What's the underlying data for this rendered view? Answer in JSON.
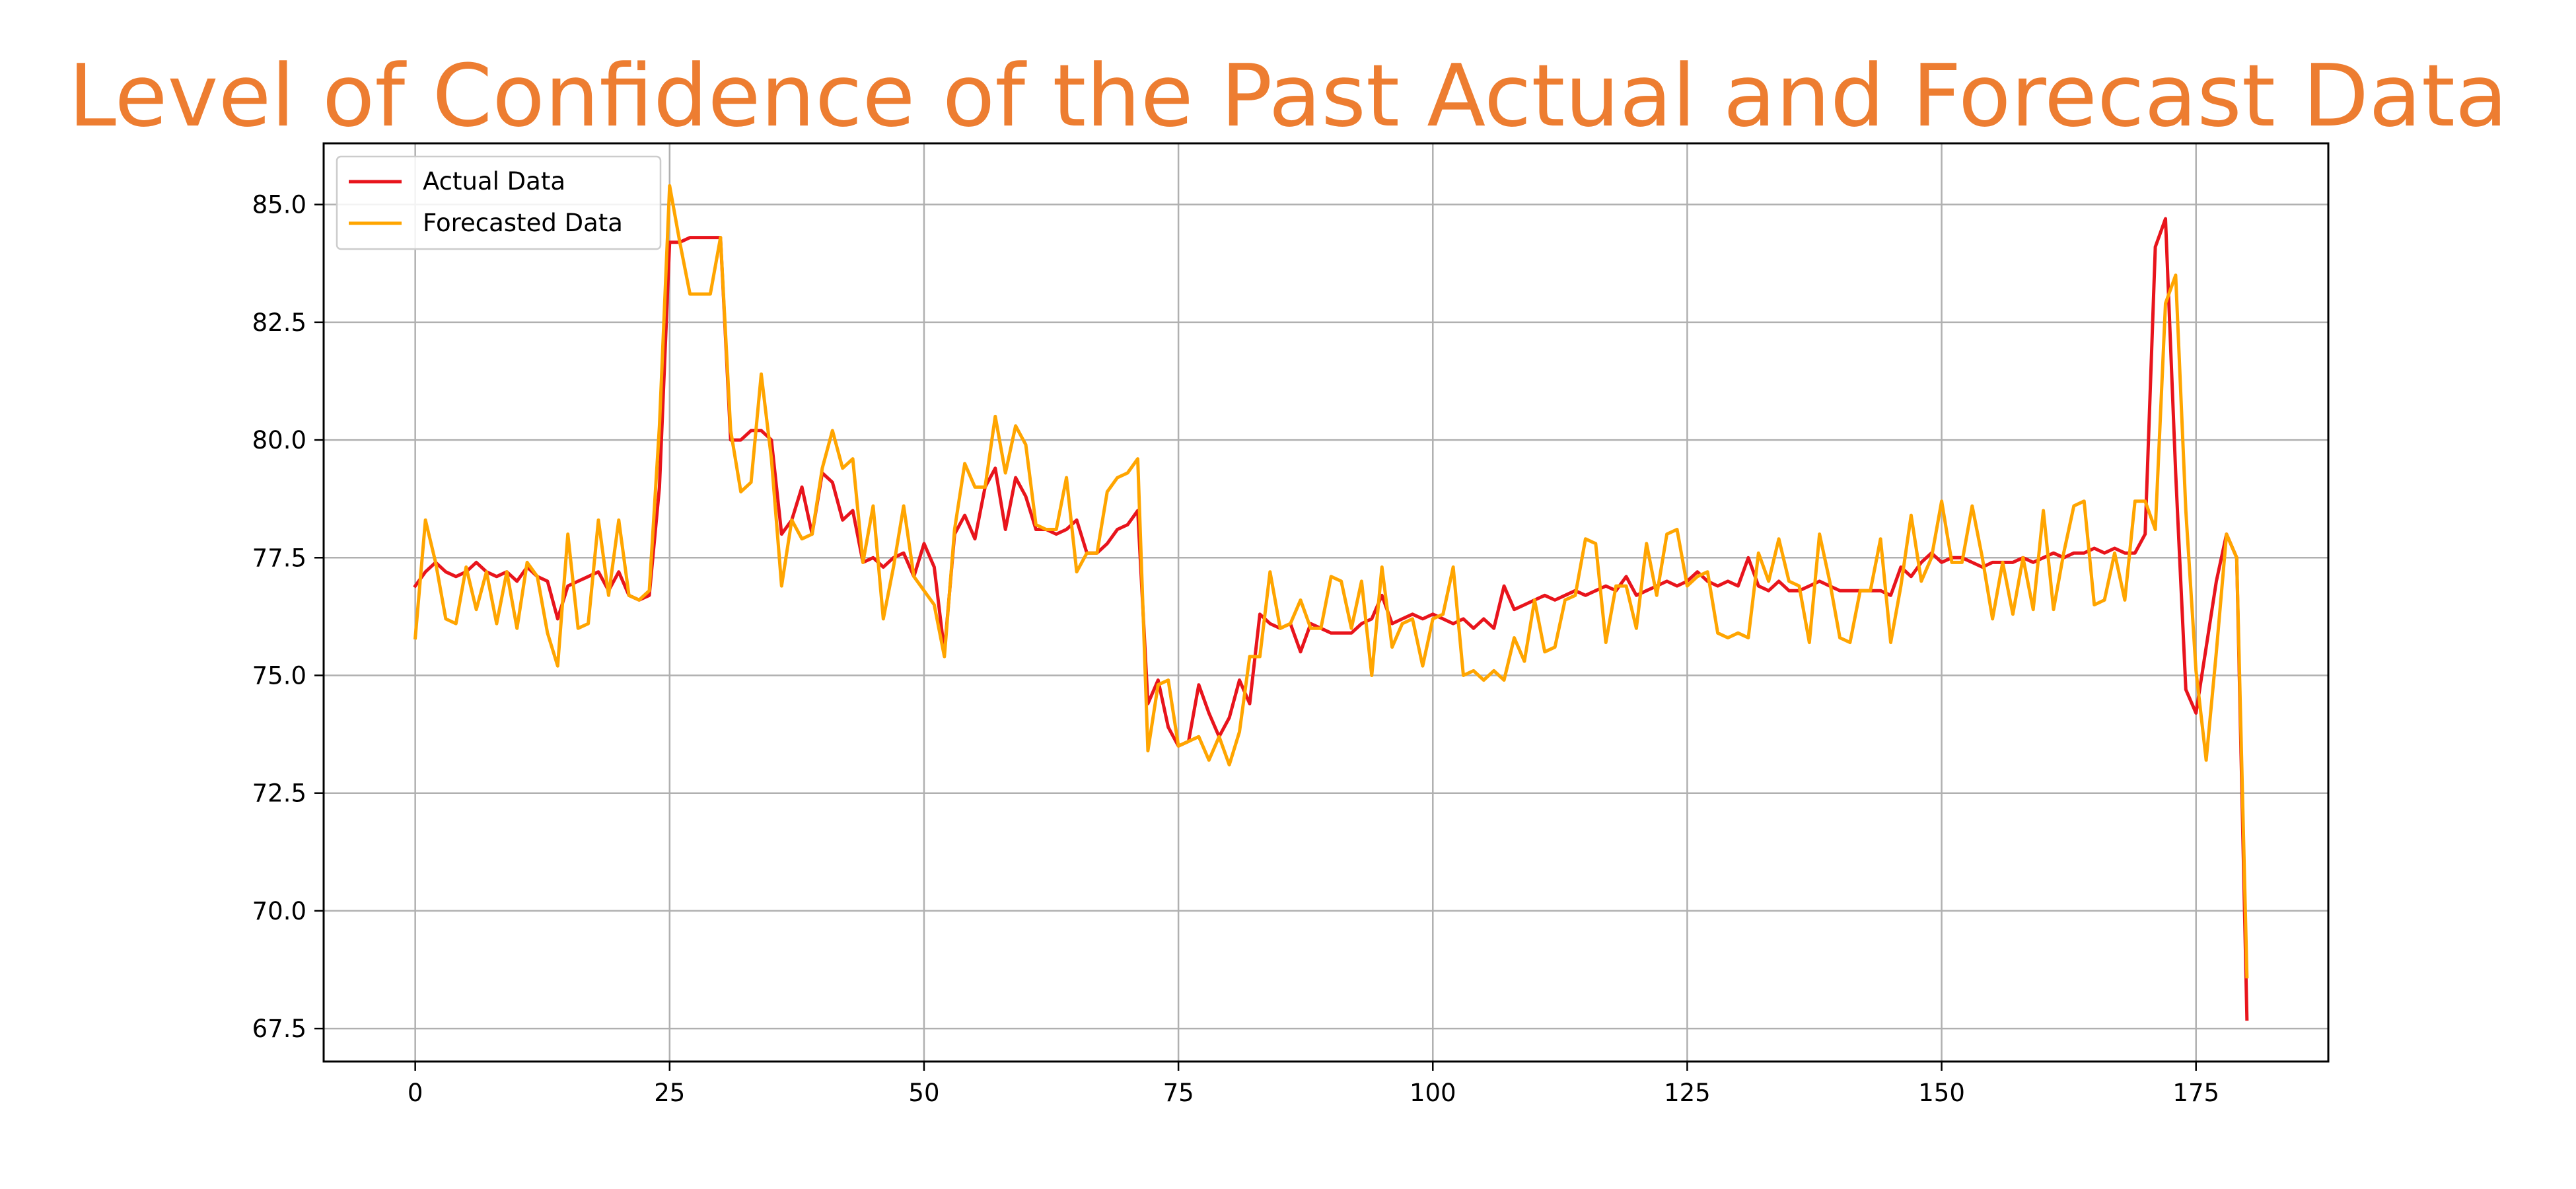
{
  "chart_data": {
    "type": "line",
    "title": "Level of Confidence of the Past Actual and Forecast Data",
    "xlabel": "",
    "ylabel": "",
    "xlim": [
      -9,
      188
    ],
    "ylim": [
      66.8,
      86.3
    ],
    "grid": true,
    "legend_position": "top-left",
    "x_ticks": [
      0,
      25,
      50,
      75,
      100,
      125,
      150,
      175
    ],
    "x_tick_labels": [
      "0",
      "25",
      "50",
      "75",
      "100",
      "125",
      "150",
      "175"
    ],
    "y_ticks": [
      67.5,
      70.0,
      72.5,
      75.0,
      77.5,
      80.0,
      82.5,
      85.0
    ],
    "y_tick_labels": [
      "67.5",
      "70.0",
      "72.5",
      "75.0",
      "77.5",
      "80.0",
      "82.5",
      "85.0"
    ],
    "series": [
      {
        "name": "Actual Data",
        "color": "#e8141c",
        "values": [
          76.9,
          77.2,
          77.4,
          77.2,
          77.1,
          77.2,
          77.4,
          77.2,
          77.1,
          77.2,
          77.0,
          77.3,
          77.1,
          77.0,
          76.2,
          76.9,
          77.0,
          77.1,
          77.2,
          76.8,
          77.2,
          76.7,
          76.6,
          76.7,
          79.0,
          84.2,
          84.2,
          84.3,
          84.3,
          84.3,
          84.3,
          80.0,
          80.0,
          80.2,
          80.2,
          80.0,
          78.0,
          78.3,
          79.0,
          78.0,
          79.3,
          79.1,
          78.3,
          78.5,
          77.4,
          77.5,
          77.3,
          77.5,
          77.6,
          77.1,
          77.8,
          77.3,
          75.5,
          78.0,
          78.4,
          77.9,
          79.0,
          79.4,
          78.1,
          79.2,
          78.8,
          78.1,
          78.1,
          78.0,
          78.1,
          78.3,
          77.6,
          77.6,
          77.8,
          78.1,
          78.2,
          78.5,
          74.4,
          74.9,
          73.9,
          73.5,
          73.6,
          74.8,
          74.2,
          73.7,
          74.1,
          74.9,
          74.4,
          76.3,
          76.1,
          76.0,
          76.1,
          75.5,
          76.1,
          76.0,
          75.9,
          75.9,
          75.9,
          76.1,
          76.2,
          76.7,
          76.1,
          76.2,
          76.3,
          76.2,
          76.3,
          76.2,
          76.1,
          76.2,
          76.0,
          76.2,
          76.0,
          76.9,
          76.4,
          76.5,
          76.6,
          76.7,
          76.6,
          76.7,
          76.8,
          76.7,
          76.8,
          76.9,
          76.8,
          77.1,
          76.7,
          76.8,
          76.9,
          77.0,
          76.9,
          77.0,
          77.2,
          77.0,
          76.9,
          77.0,
          76.9,
          77.5,
          76.9,
          76.8,
          77.0,
          76.8,
          76.8,
          76.9,
          77.0,
          76.9,
          76.8,
          76.8,
          76.8,
          76.8,
          76.8,
          76.7,
          77.3,
          77.1,
          77.4,
          77.6,
          77.4,
          77.5,
          77.5,
          77.4,
          77.3,
          77.4,
          77.4,
          77.4,
          77.5,
          77.4,
          77.5,
          77.6,
          77.5,
          77.6,
          77.6,
          77.7,
          77.6,
          77.7,
          77.6,
          77.6,
          78.0,
          84.1,
          84.7,
          79.3,
          74.7,
          74.2,
          75.6,
          77.0,
          78.0,
          77.5,
          67.7
        ]
      },
      {
        "name": "Forecasted Data",
        "color": "#ffa500",
        "values": [
          75.8,
          78.3,
          77.4,
          76.2,
          76.1,
          77.3,
          76.4,
          77.2,
          76.1,
          77.2,
          76.0,
          77.4,
          77.1,
          75.9,
          75.2,
          78.0,
          76.0,
          76.1,
          78.3,
          76.7,
          78.3,
          76.7,
          76.6,
          76.8,
          80.3,
          85.4,
          84.2,
          83.1,
          83.1,
          83.1,
          84.3,
          80.2,
          78.9,
          79.1,
          81.4,
          79.6,
          76.9,
          78.3,
          77.9,
          78.0,
          79.4,
          80.2,
          79.4,
          79.6,
          77.4,
          78.6,
          76.2,
          77.3,
          78.6,
          77.1,
          76.8,
          76.5,
          75.4,
          78.1,
          79.5,
          79.0,
          79.0,
          80.5,
          79.3,
          80.3,
          79.9,
          78.2,
          78.1,
          78.1,
          79.2,
          77.2,
          77.6,
          77.6,
          78.9,
          79.2,
          79.3,
          79.6,
          73.4,
          74.8,
          74.9,
          73.5,
          73.6,
          73.7,
          73.2,
          73.7,
          73.1,
          73.8,
          75.4,
          75.4,
          77.2,
          76.0,
          76.1,
          76.6,
          76.0,
          76.0,
          77.1,
          77.0,
          76.0,
          77.0,
          75.0,
          77.3,
          75.6,
          76.1,
          76.2,
          75.2,
          76.2,
          76.3,
          77.3,
          75.0,
          75.1,
          74.9,
          75.1,
          74.9,
          75.8,
          75.3,
          76.6,
          75.5,
          75.6,
          76.6,
          76.7,
          77.9,
          77.8,
          75.7,
          76.9,
          76.9,
          76.0,
          77.8,
          76.7,
          78.0,
          78.1,
          76.9,
          77.1,
          77.2,
          75.9,
          75.8,
          75.9,
          75.8,
          77.6,
          77.0,
          77.9,
          77.0,
          76.9,
          75.7,
          78.0,
          77.0,
          75.8,
          75.7,
          76.8,
          76.8,
          77.9,
          75.7,
          76.9,
          78.4,
          77.0,
          77.5,
          78.7,
          77.4,
          77.4,
          78.6,
          77.5,
          76.2,
          77.4,
          76.3,
          77.5,
          76.4,
          78.5,
          76.4,
          77.6,
          78.6,
          78.7,
          76.5,
          76.6,
          77.6,
          76.6,
          78.7,
          78.7,
          78.1,
          82.9,
          83.5,
          78.5,
          75.1,
          73.2,
          75.5,
          78.0,
          77.5,
          68.6
        ]
      }
    ]
  }
}
